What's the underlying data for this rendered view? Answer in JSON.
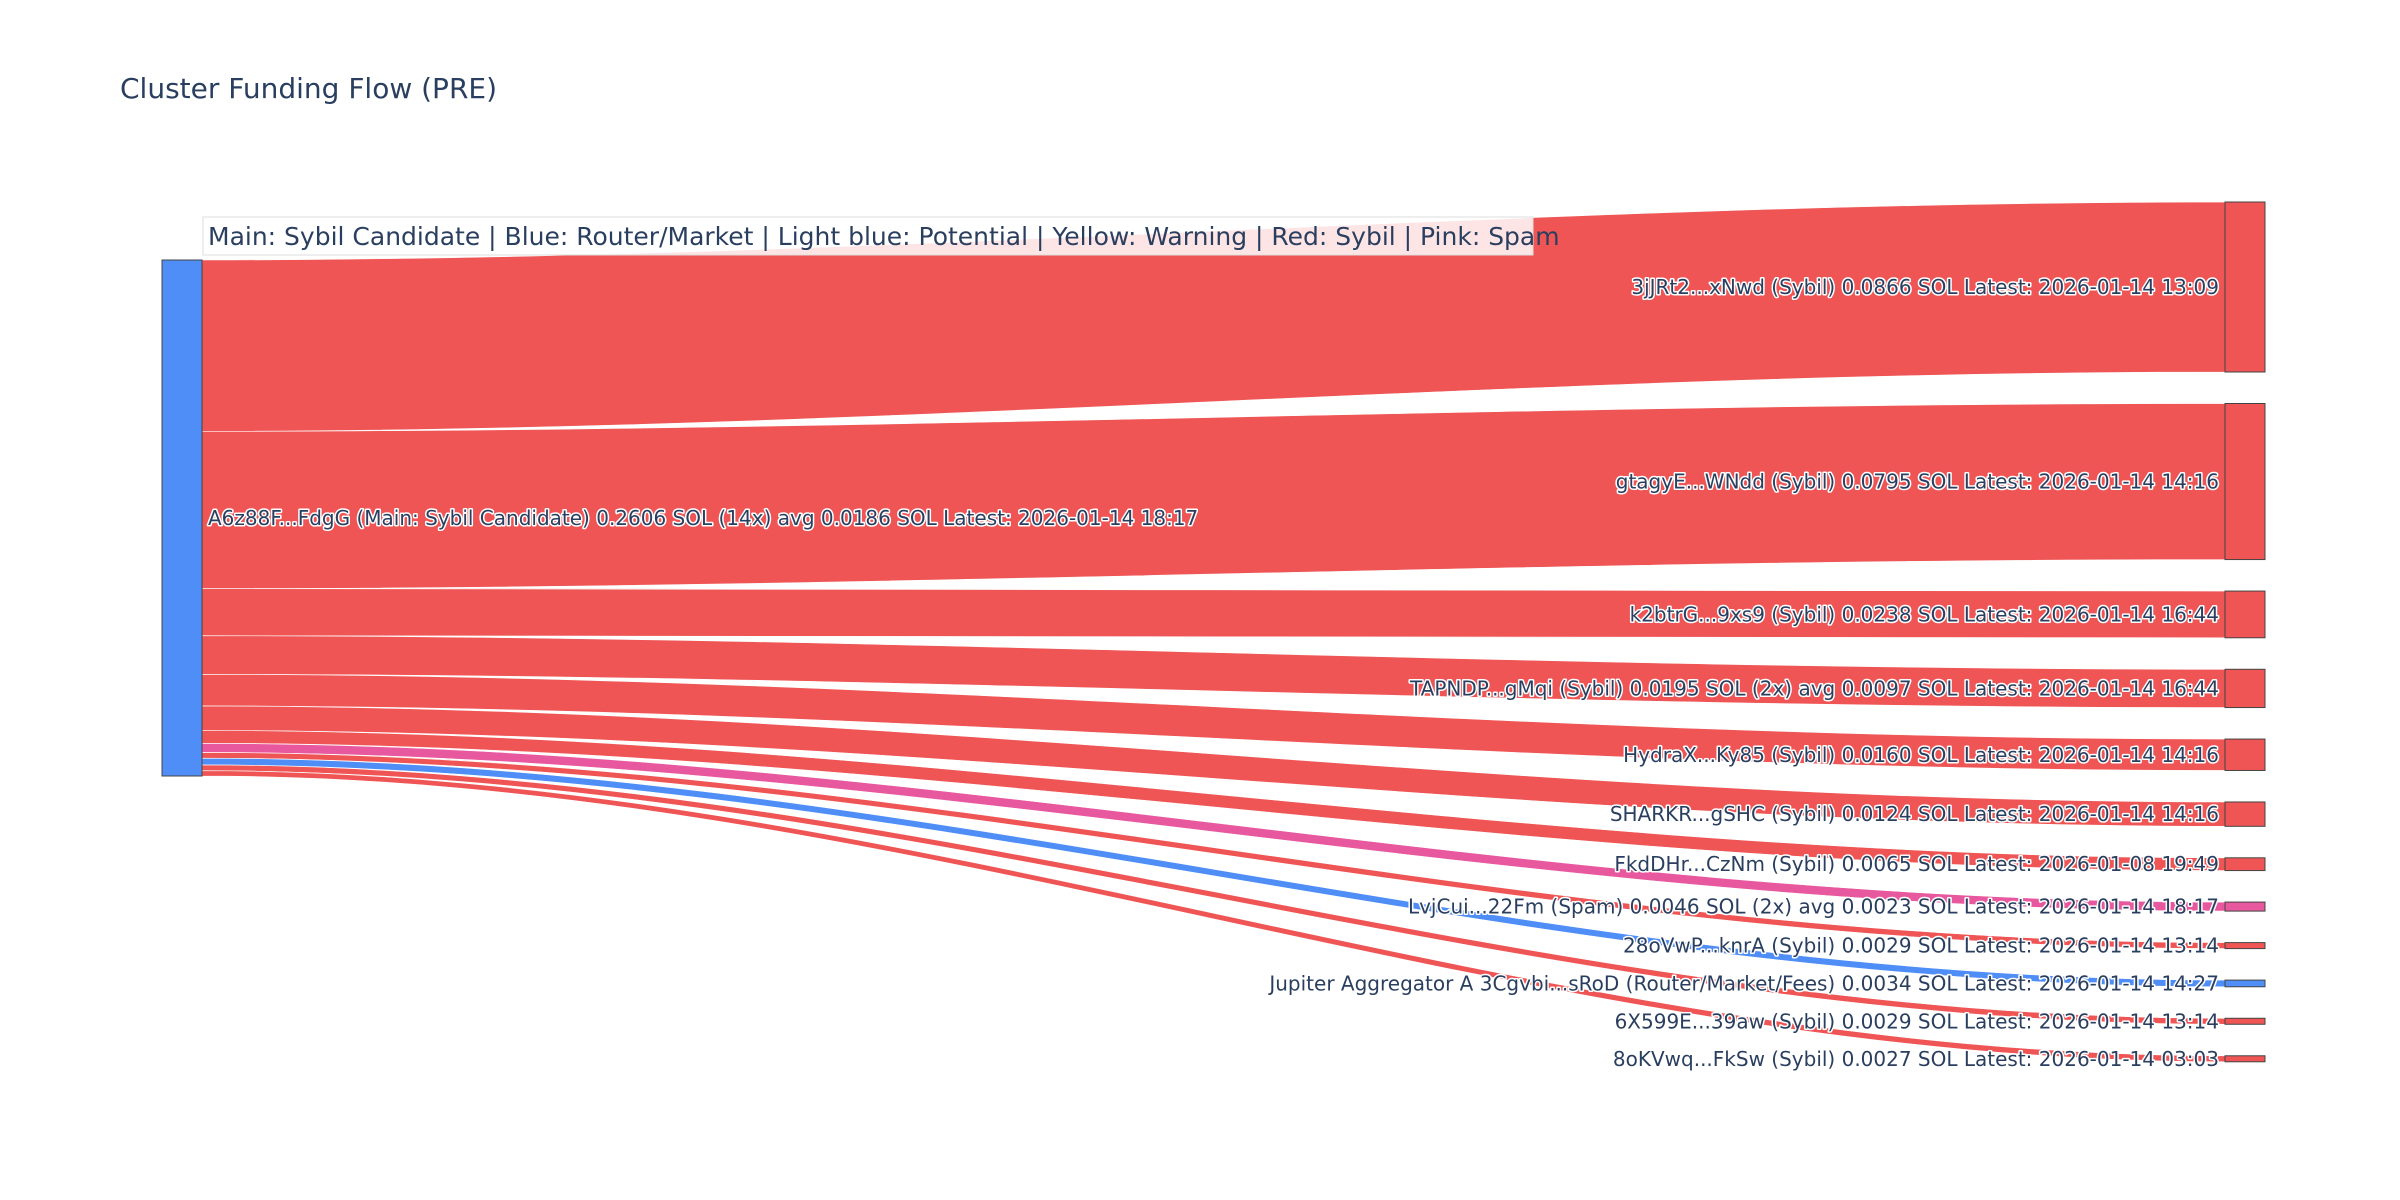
{
  "chart_data": {
    "type": "sankey",
    "title": "Cluster Funding Flow (PRE)",
    "legend_text": "Main: Sybil Candidate  |  Blue: Router/Market | Light blue: Potential | Yellow: Warning | Red: Sybil | Pink: Spam",
    "colors": {
      "main": "#4f8ef7",
      "router": "#4f8ef7",
      "sybil": "#ef5555",
      "spam": "#e8589e",
      "node_border": "#444444"
    },
    "source": {
      "label": "A6z88F...FdgG (Main: Sybil Candidate) 0.2606 SOL (14x) avg 0.0186 SOL Latest: 2026-01-14 18:17",
      "value": 0.2606,
      "category": "main"
    },
    "targets": [
      {
        "label": "3jJRt2...xNwd (Sybil) 0.0866 SOL Latest: 2026-01-14 13:09",
        "value": 0.0866,
        "category": "sybil"
      },
      {
        "label": "gtagyE...WNdd (Sybil) 0.0795 SOL Latest: 2026-01-14 14:16",
        "value": 0.0795,
        "category": "sybil"
      },
      {
        "label": "k2btrG...9xs9 (Sybil) 0.0238 SOL Latest: 2026-01-14 16:44",
        "value": 0.0238,
        "category": "sybil"
      },
      {
        "label": "TAPNDP...gMqi (Sybil) 0.0195 SOL (2x) avg 0.0097 SOL Latest: 2026-01-14 16:44",
        "value": 0.0195,
        "category": "sybil"
      },
      {
        "label": "HydraX...Ky85 (Sybil) 0.0160 SOL Latest: 2026-01-14 14:16",
        "value": 0.016,
        "category": "sybil"
      },
      {
        "label": "SHARKR...gSHC (Sybil) 0.0124 SOL Latest: 2026-01-14 14:16",
        "value": 0.0124,
        "category": "sybil"
      },
      {
        "label": "FkdDHr...CzNm (Sybil) 0.0065 SOL Latest: 2026-01-08 19:49",
        "value": 0.0065,
        "category": "sybil"
      },
      {
        "label": "LvjCui...22Fm (Spam) 0.0046 SOL (2x) avg 0.0023 SOL Latest: 2026-01-14 18:17",
        "value": 0.0046,
        "category": "spam"
      },
      {
        "label": "28oVwP...knrA (Sybil) 0.0029 SOL Latest: 2026-01-14 13:14",
        "value": 0.0029,
        "category": "sybil"
      },
      {
        "label": "Jupiter Aggregator A 3Cgvbi...sRoD (Router/Market/Fees) 0.0034 SOL Latest: 2026-01-14 14:27",
        "value": 0.0034,
        "category": "router"
      },
      {
        "label": "6X599E...39aw (Sybil) 0.0029 SOL Latest: 2026-01-14 13:14",
        "value": 0.0029,
        "category": "sybil"
      },
      {
        "label": "8oKVwq...FkSw (Sybil) 0.0027 SOL Latest: 2026-01-14 03:03",
        "value": 0.0027,
        "category": "sybil"
      }
    ]
  }
}
